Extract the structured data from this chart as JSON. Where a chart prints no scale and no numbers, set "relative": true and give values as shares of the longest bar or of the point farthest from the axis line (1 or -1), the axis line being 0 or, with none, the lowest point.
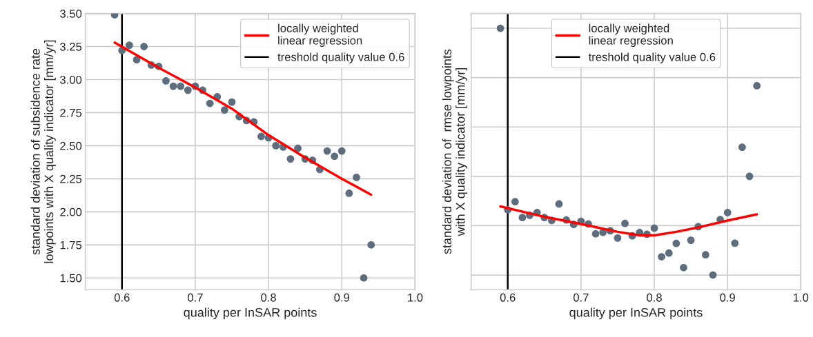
{
  "chart_data": [
    {
      "type": "scatter",
      "xlabel": "quality per InSAR points",
      "ylabel": "standard deviation of subsidence rate\nlowpoints with X quality indicator [mm/yr]",
      "xlim": [
        0.55,
        1.0
      ],
      "xticks": [
        0.6,
        0.7,
        0.8,
        0.9,
        {
          "value": 1.0,
          "label": "1.0"
        }
      ],
      "ylim": [
        1.41,
        3.5
      ],
      "yticks": [
        {
          "value": 1.5,
          "label": "1.50"
        },
        {
          "value": 1.75,
          "label": "1.75"
        },
        {
          "value": 2.0,
          "label": "2.00"
        },
        {
          "value": 2.25,
          "label": "2.25"
        },
        {
          "value": 2.5,
          "label": "2.50"
        },
        {
          "value": 2.75,
          "label": "2.75"
        },
        {
          "value": 3.0,
          "label": "3.00"
        },
        {
          "value": 3.25,
          "label": "3.25"
        },
        {
          "value": 3.5,
          "label": "3.50"
        }
      ],
      "grid": true,
      "legend": "top right",
      "marker": "circle",
      "ref_lines": [
        {
          "axis": "x",
          "value": 0.6,
          "label": "treshold quality value 0.6",
          "color": "#000000"
        }
      ],
      "series": [
        {
          "color": "#5d6d7e",
          "x": [
            0.59,
            0.6,
            0.61,
            0.62,
            0.63,
            0.64,
            0.65,
            0.66,
            0.67,
            0.68,
            0.69,
            0.7,
            0.71,
            0.72,
            0.73,
            0.74,
            0.75,
            0.76,
            0.77,
            0.78,
            0.79,
            0.8,
            0.81,
            0.82,
            0.83,
            0.84,
            0.85,
            0.86,
            0.87,
            0.88,
            0.89,
            0.9,
            0.91,
            0.92,
            0.93,
            0.94
          ],
          "values": [
            3.49,
            3.22,
            3.26,
            3.15,
            3.25,
            3.11,
            3.1,
            2.99,
            2.95,
            2.95,
            2.92,
            2.95,
            2.92,
            2.82,
            2.87,
            2.77,
            2.83,
            2.72,
            2.69,
            2.68,
            2.57,
            2.56,
            2.5,
            2.49,
            2.4,
            2.48,
            2.4,
            2.39,
            2.32,
            2.46,
            2.42,
            2.46,
            2.14,
            2.26,
            1.5,
            1.75
          ]
        },
        {
          "type": "line",
          "marker": "none",
          "name": "locally weighted\nlinear regression",
          "color": "#ff0000",
          "x": [
            0.59,
            0.65,
            0.7,
            0.75,
            0.8,
            0.85,
            0.9,
            0.94
          ],
          "values": [
            3.28,
            3.09,
            2.94,
            2.78,
            2.58,
            2.41,
            2.25,
            2.13
          ]
        }
      ]
    },
    {
      "type": "scatter",
      "relative": true,
      "tick_labels": "x",
      "xlabel": "quality per InSAR points",
      "ylabel": "standard deviation of  rmse lowpoints\nwith X quality indicator [mm/yr]",
      "xlim": [
        0.55,
        1.0
      ],
      "xticks": [
        0.6,
        0.7,
        0.8,
        0.9,
        {
          "value": 1.0,
          "label": "1.0"
        }
      ],
      "grid": true,
      "legend": "top",
      "marker": "circle",
      "ref_lines": [
        {
          "axis": "x",
          "value": 0.6,
          "label": "treshold quality value 0.6",
          "color": "#000000"
        }
      ],
      "series": [
        {
          "color": "#5d6d7e",
          "x": [
            0.59,
            0.6,
            0.61,
            0.62,
            0.63,
            0.64,
            0.65,
            0.66,
            0.67,
            0.68,
            0.69,
            0.7,
            0.71,
            0.72,
            0.73,
            0.74,
            0.75,
            0.76,
            0.77,
            0.78,
            0.79,
            0.8,
            0.81,
            0.82,
            0.83,
            0.84,
            0.85,
            0.86,
            0.87,
            0.88,
            0.89,
            0.9,
            0.91,
            0.92,
            0.93,
            0.94
          ],
          "values": [
            1.0,
            0.264,
            0.297,
            0.233,
            0.242,
            0.253,
            0.233,
            0.221,
            0.288,
            0.223,
            0.205,
            0.218,
            0.207,
            0.167,
            0.173,
            0.179,
            0.15,
            0.209,
            0.159,
            0.172,
            0.165,
            0.19,
            0.074,
            0.089,
            0.128,
            0.03,
            0.141,
            0.196,
            0.082,
            0,
            0.225,
            0.253,
            0.129,
            0.518,
            0.4,
            0.767
          ]
        },
        {
          "type": "line",
          "marker": "none",
          "name": "locally weighted\nlinear regression",
          "color": "#ff0000",
          "x": [
            0.59,
            0.65,
            0.7,
            0.75,
            0.78,
            0.8,
            0.83,
            0.86,
            0.9,
            0.94
          ],
          "values": [
            0.278,
            0.236,
            0.207,
            0.175,
            0.161,
            0.161,
            0.175,
            0.193,
            0.221,
            0.246
          ]
        }
      ]
    }
  ]
}
